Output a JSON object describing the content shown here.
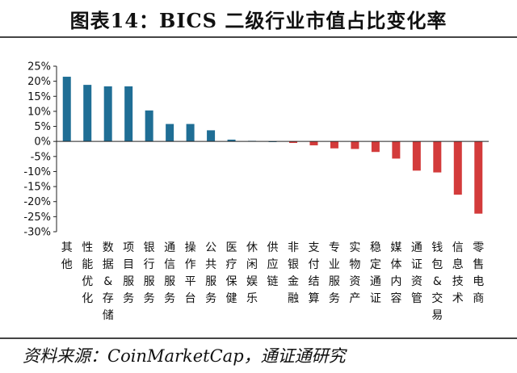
{
  "title": "图表14：BICS 二级行业市值占比变化率",
  "source": "资料来源：CoinMarketCap，通证通研究",
  "colors": {
    "positive": "#1f6e95",
    "negative": "#d33b3b",
    "axis": "#222222"
  },
  "chart_data": {
    "type": "bar",
    "title": "图表14：BICS 二级行业市值占比变化率",
    "xlabel": "",
    "ylabel": "",
    "ylim": [
      -30,
      25
    ],
    "yticks": [
      25,
      20,
      15,
      10,
      5,
      0,
      -5,
      -10,
      -15,
      -20,
      -25,
      -30
    ],
    "ytick_labels": [
      "25%",
      "20%",
      "15%",
      "10%",
      "5%",
      "0%",
      "-5%",
      "-10%",
      "-15%",
      "-20%",
      "-25%",
      "-30%"
    ],
    "grid": false,
    "categories": [
      "其他",
      "性能优化",
      "数据&存储",
      "项目服务",
      "银行服务",
      "通信服务",
      "操作平台",
      "公共服务",
      "医疗保健",
      "休闲娱乐",
      "供应链",
      "非银金融",
      "支付结算",
      "专业服务",
      "实物资产",
      "稳定通证",
      "媒体内容",
      "通证资管",
      "钱包&交易",
      "信息技术",
      "零售电商"
    ],
    "values": [
      21.5,
      18.8,
      18.3,
      18.3,
      10.3,
      5.8,
      5.8,
      3.7,
      0.6,
      0.2,
      0.0,
      -0.5,
      -1.3,
      -2.3,
      -2.5,
      -3.5,
      -5.7,
      -9.7,
      -10.3,
      -17.7,
      -24.0
    ]
  }
}
